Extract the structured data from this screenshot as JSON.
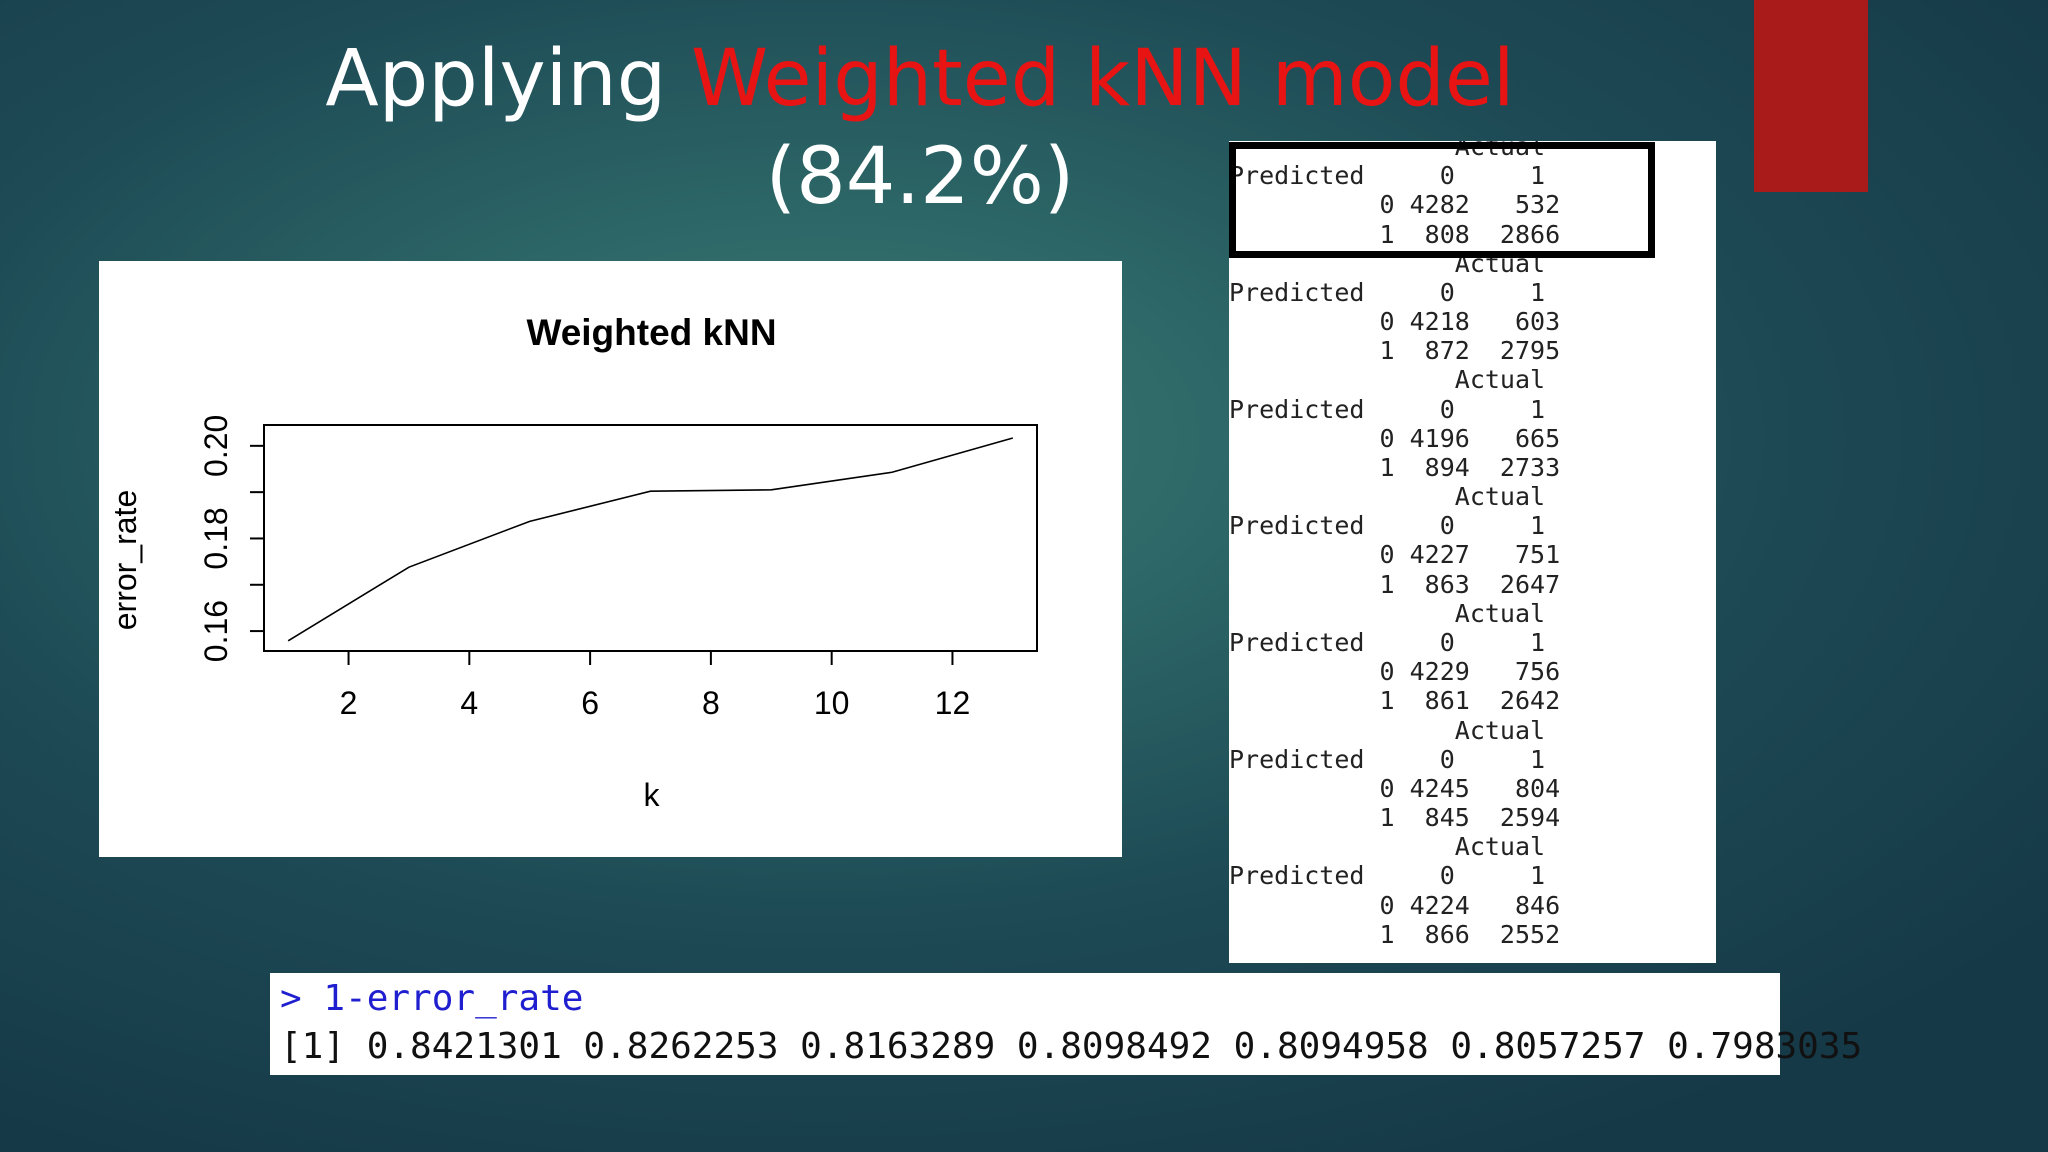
{
  "slide": {
    "title_prefix": "Applying ",
    "title_highlight": "Weighted kNN model",
    "title_line2": "(84.2%)",
    "accent_color": "#e81414",
    "decoration_color": "#a91b1b"
  },
  "chart_data": {
    "type": "line",
    "title": "Weighted kNN",
    "xlabel": "k",
    "ylabel": "error_rate",
    "x": [
      1,
      3,
      5,
      7,
      9,
      11,
      13
    ],
    "series": [
      {
        "values": [
          0.1579,
          0.1738,
          0.1837,
          0.1902,
          0.1905,
          0.1943,
          0.2017
        ]
      }
    ],
    "xlim": [
      0.6,
      13.4
    ],
    "ylim": [
      0.1557,
      0.2045
    ],
    "xticks": [
      "2",
      "4",
      "6",
      "8",
      "10",
      "12"
    ],
    "yticks": [
      "0.16",
      "0.18",
      "0.20"
    ],
    "grid": false
  },
  "confusion_matrices": [
    {
      "header": "Actual",
      "cols": "Predicted     0     1",
      "row0": "          0 4282   532",
      "row1": "          1  808  2866"
    },
    {
      "header": "Actual",
      "cols": "Predicted     0     1",
      "row0": "          0 4218   603",
      "row1": "          1  872  2795"
    },
    {
      "header": "Actual",
      "cols": "Predicted     0     1",
      "row0": "          0 4196   665",
      "row1": "          1  894  2733"
    },
    {
      "header": "Actual",
      "cols": "Predicted     0     1",
      "row0": "          0 4227   751",
      "row1": "          1  863  2647"
    },
    {
      "header": "Actual",
      "cols": "Predicted     0     1",
      "row0": "          0 4229   756",
      "row1": "          1  861  2642"
    },
    {
      "header": "Actual",
      "cols": "Predicted     0     1",
      "row0": "          0 4245   804",
      "row1": "          1  845  2594"
    },
    {
      "header": "Actual",
      "cols": "Predicted     0     1",
      "row0": "          0 4224   846",
      "row1": "          1  866  2552"
    }
  ],
  "console": {
    "command": "> 1-error_rate",
    "output": "[1] 0.8421301 0.8262253 0.8163289 0.8098492 0.8094958 0.8057257 0.7983035"
  }
}
